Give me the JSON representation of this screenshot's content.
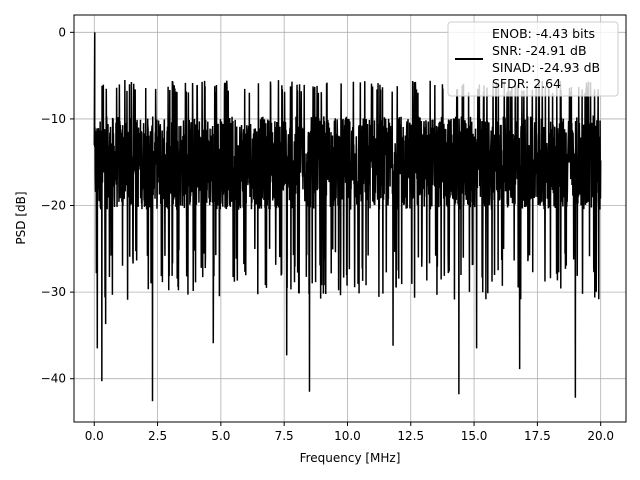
{
  "chart_data": {
    "type": "line",
    "xlabel": "Frequency [MHz]",
    "ylabel": "PSD [dB]",
    "xlim": [
      -0.8,
      21.0
    ],
    "ylim": [
      -45,
      2
    ],
    "x_ticks": [
      0.0,
      2.5,
      5.0,
      7.5,
      10.0,
      12.5,
      15.0,
      17.5,
      20.0
    ],
    "x_tick_labels": [
      "0.0",
      "2.5",
      "5.0",
      "7.5",
      "10.0",
      "12.5",
      "15.0",
      "17.5",
      "20.0"
    ],
    "y_ticks": [
      0,
      -10,
      -20,
      -30,
      -40
    ],
    "y_tick_labels": [
      "0",
      "−10",
      "−20",
      "−30",
      "−40"
    ],
    "grid": true,
    "legend_position": "top-right",
    "series": [
      {
        "color": "#000000",
        "freq_range_mhz": [
          0.0,
          20.0
        ],
        "peak": {
          "x": 0.02,
          "y": 0.0
        },
        "typical_range_db": [
          -25,
          -7
        ],
        "upper_envelope_db": -5.5,
        "deep_notches": [
          {
            "x": 0.12,
            "y": -36.5
          },
          {
            "x": 0.3,
            "y": -40.3
          },
          {
            "x": 0.45,
            "y": -33.7
          },
          {
            "x": 2.3,
            "y": -42.6
          },
          {
            "x": 4.7,
            "y": -35.9
          },
          {
            "x": 7.6,
            "y": -37.3
          },
          {
            "x": 8.5,
            "y": -41.5
          },
          {
            "x": 11.8,
            "y": -36.2
          },
          {
            "x": 14.4,
            "y": -41.8
          },
          {
            "x": 15.1,
            "y": -36.5
          },
          {
            "x": 16.8,
            "y": -38.9
          },
          {
            "x": 19.0,
            "y": -42.2
          }
        ]
      }
    ],
    "legend": {
      "entries": [
        "ENOB: -4.43 bits",
        "SNR: -24.91 dB",
        "SINAD: -24.93 dB",
        "SFDR: 2.64"
      ]
    }
  }
}
